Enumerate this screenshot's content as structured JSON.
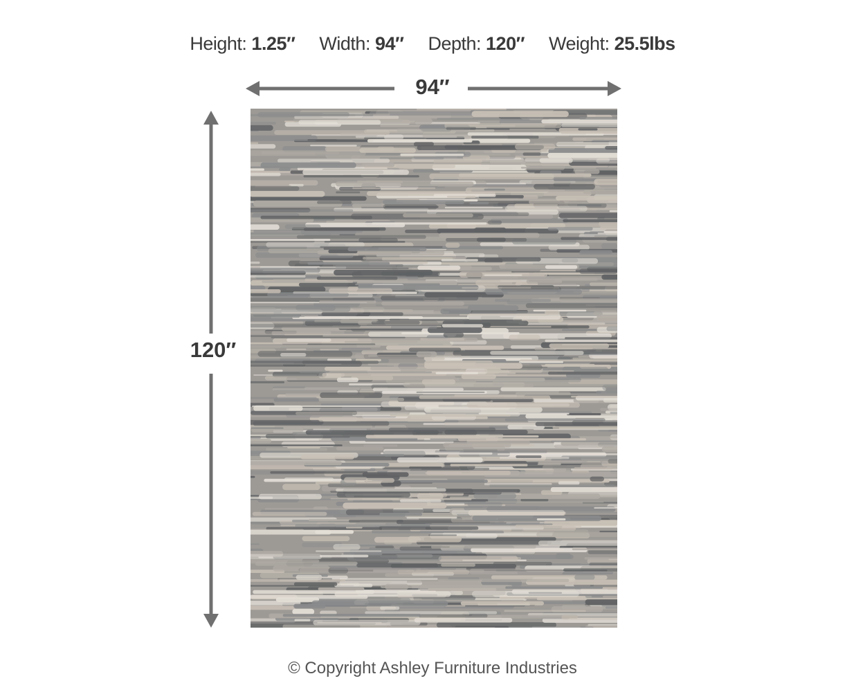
{
  "specs": [
    {
      "label": "Height:",
      "value": "1.25″"
    },
    {
      "label": "Width:",
      "value": "94″"
    },
    {
      "label": "Depth:",
      "value": "120″"
    },
    {
      "label": "Weight:",
      "value": "25.5lbs"
    }
  ],
  "diagram": {
    "width_label": "94″",
    "height_label": "120″",
    "arrow_color": "#707070"
  },
  "product": {
    "image": "striped gray and beige shag rug",
    "colors": [
      "#5f6163",
      "#8a8b8c",
      "#b0aba4",
      "#c9c1b6",
      "#e3ded6"
    ]
  },
  "footer": {
    "copyright": "© Copyright Ashley Furniture Industries"
  }
}
